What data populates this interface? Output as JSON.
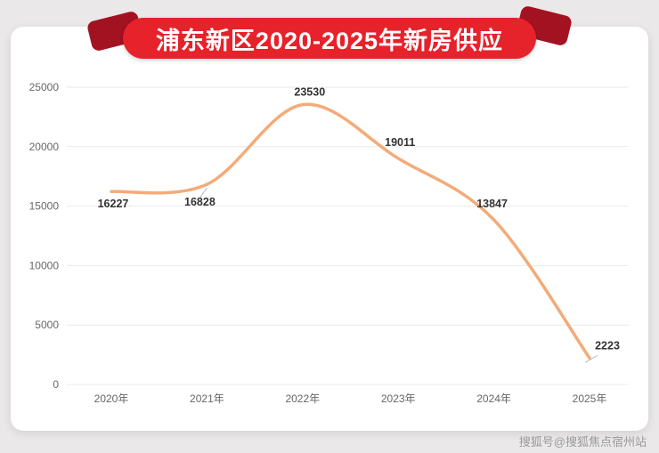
{
  "page": {
    "title": "浦东新区2020-2025年新房供应",
    "watermark": "搜狐号@搜狐焦点宿州站"
  },
  "colors": {
    "background": "#eae8e8",
    "card": "#ffffff",
    "banner_red": "#e6222b",
    "banner_fold_dark_red": "#a31220",
    "line": "#f3ab79",
    "data_label": "#333333",
    "axis_label": "#666666",
    "grid": "#e9e9e9",
    "leader_line": "#bbbbbb",
    "watermark": "#9a9a9a"
  },
  "chart_data": {
    "type": "line",
    "title": "浦东新区2020-2025年新房供应",
    "categories": [
      "2020年",
      "2021年",
      "2022年",
      "2023年",
      "2024年",
      "2025年"
    ],
    "values": [
      16227,
      16828,
      23530,
      19011,
      13847,
      2223
    ],
    "xlabel": "",
    "ylabel": "",
    "ylim": [
      0,
      25000
    ],
    "y_ticks": [
      0,
      5000,
      10000,
      15000,
      20000,
      25000
    ],
    "grid": true,
    "smooth": true,
    "line_color": "#f3ab79",
    "legend_position": "none"
  }
}
